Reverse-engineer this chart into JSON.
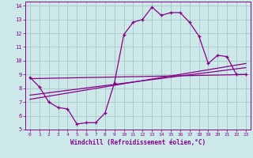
{
  "xlabel": "Windchill (Refroidissement éolien,°C)",
  "background_color": "#cce8e8",
  "line_color": "#880088",
  "grid_color": "#aacccc",
  "xlim": [
    -0.5,
    23.5
  ],
  "ylim": [
    5,
    14.3
  ],
  "yticks": [
    5,
    6,
    7,
    8,
    9,
    10,
    11,
    12,
    13,
    14
  ],
  "xticks": [
    0,
    1,
    2,
    3,
    4,
    5,
    6,
    7,
    8,
    9,
    10,
    11,
    12,
    13,
    14,
    15,
    16,
    17,
    18,
    19,
    20,
    21,
    22,
    23
  ],
  "line1_x": [
    0,
    1,
    2,
    3,
    4,
    5,
    6,
    7,
    8,
    9,
    10,
    11,
    12,
    13,
    14,
    15,
    16,
    17,
    18,
    19,
    20,
    21,
    22,
    23
  ],
  "line1_y": [
    8.8,
    8.1,
    7.0,
    6.6,
    6.5,
    5.4,
    5.5,
    5.5,
    6.2,
    8.4,
    11.9,
    12.8,
    13.0,
    13.9,
    13.3,
    13.5,
    13.5,
    12.8,
    11.8,
    9.8,
    10.4,
    10.3,
    9.0,
    9.0
  ],
  "line2_x": [
    0,
    23
  ],
  "line2_y": [
    8.7,
    9.0
  ],
  "line3_x": [
    0,
    23
  ],
  "line3_y": [
    7.5,
    9.5
  ],
  "line4_x": [
    0,
    23
  ],
  "line4_y": [
    7.2,
    9.8
  ]
}
